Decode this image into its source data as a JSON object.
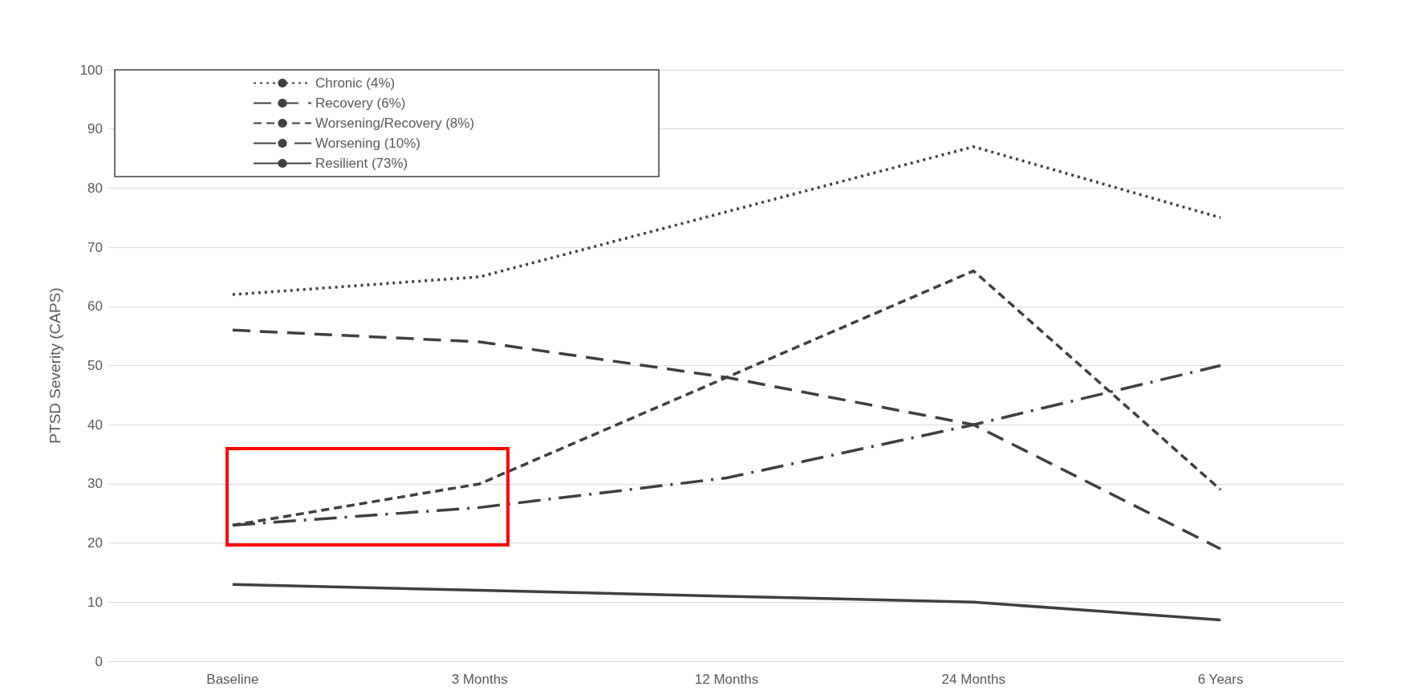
{
  "chart_data": {
    "type": "line",
    "ylabel": "PTSD Severity (CAPS)",
    "categories": [
      "Baseline",
      "3 Months",
      "12 Months",
      "24 Months",
      "6 Years"
    ],
    "series": [
      {
        "name": "Chronic (4%)",
        "color": "#404040",
        "line_style": "dotted",
        "values": [
          62,
          65,
          76,
          87,
          75
        ]
      },
      {
        "name": "Recovery (6%)",
        "color": "#404040",
        "line_style": "dashed",
        "values": [
          56,
          54,
          48,
          40,
          19
        ]
      },
      {
        "name": "Worsening/Recovery (8%)",
        "color": "#404040",
        "line_style": "dashed",
        "values": [
          23,
          30,
          48,
          66,
          29
        ]
      },
      {
        "name": "Worsening (10%)",
        "color": "#404040",
        "line_style": "dashed",
        "values": [
          23,
          26,
          31,
          40,
          50
        ]
      },
      {
        "name": "Resilient (73%)",
        "color": "#404040",
        "line_style": "solid",
        "values": [
          13,
          12,
          11,
          10,
          7
        ]
      }
    ],
    "ylim": [
      0,
      100
    ],
    "yticks": [
      0,
      10,
      20,
      30,
      40,
      50,
      60,
      70,
      80,
      90,
      100
    ],
    "grid": "y",
    "legend": "top left",
    "marker": "none"
  }
}
